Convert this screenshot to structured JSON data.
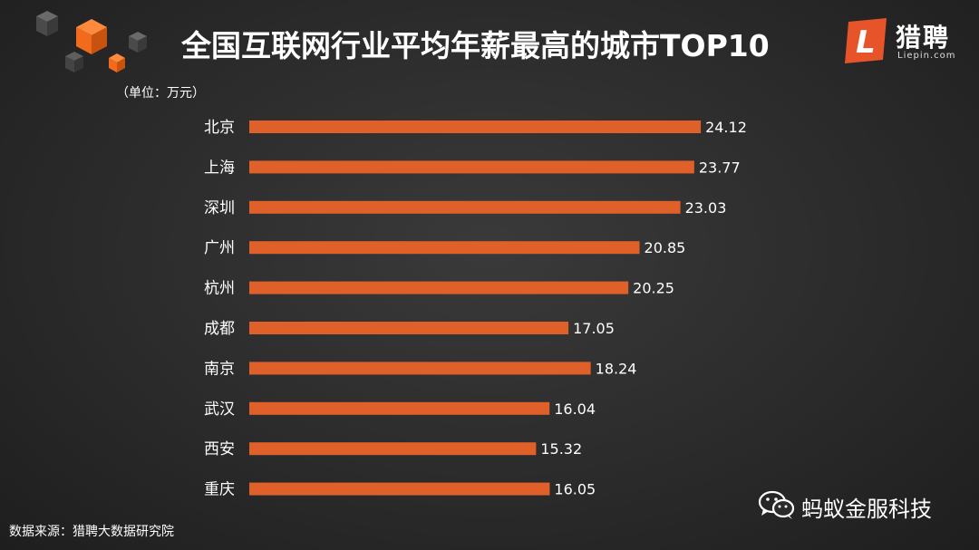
{
  "header": {
    "title": "全国互联网行业平均年薪最高的城市TOP10",
    "unit_note": "（单位：万元）"
  },
  "logo": {
    "badge_letter": "L",
    "name": "猎聘",
    "url": "Liepin.com"
  },
  "footer": {
    "source": "数据来源：猎聘大数据研究院",
    "wechat_account": "蚂蚁金服科技"
  },
  "colors": {
    "bar": "#e0602a",
    "logo_orange": "#e8542a",
    "cube_orange": "#f26b1d",
    "cube_gray": "#555555"
  },
  "chart_data": {
    "type": "bar",
    "orientation": "horizontal",
    "categories": [
      "北京",
      "上海",
      "深圳",
      "广州",
      "杭州",
      "成都",
      "南京",
      "武汉",
      "西安",
      "重庆"
    ],
    "values": [
      24.12,
      23.77,
      23.03,
      20.85,
      20.25,
      17.05,
      18.24,
      16.04,
      15.32,
      16.05
    ],
    "title": "全国互联网行业平均年薪最高的城市TOP10",
    "xlabel": "",
    "ylabel": "",
    "grid": false,
    "data_labels": true
  }
}
